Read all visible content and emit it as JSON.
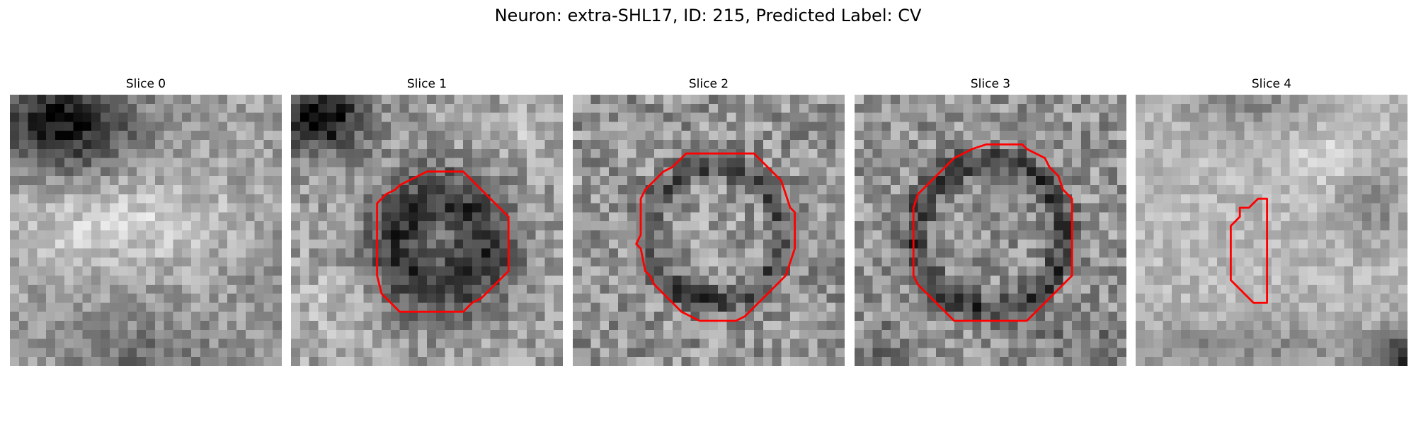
{
  "figure": {
    "title": "Neuron: extra-SHL17, ID: 215, Predicted Label: CV"
  },
  "colors": {
    "contour": "#ff0000",
    "colormap": "gray"
  },
  "panels": [
    {
      "title": "Slice 0",
      "has_contour": false
    },
    {
      "title": "Slice 1",
      "has_contour": true
    },
    {
      "title": "Slice 2",
      "has_contour": true
    },
    {
      "title": "Slice 3",
      "has_contour": true
    },
    {
      "title": "Slice 4",
      "has_contour": true
    }
  ]
}
